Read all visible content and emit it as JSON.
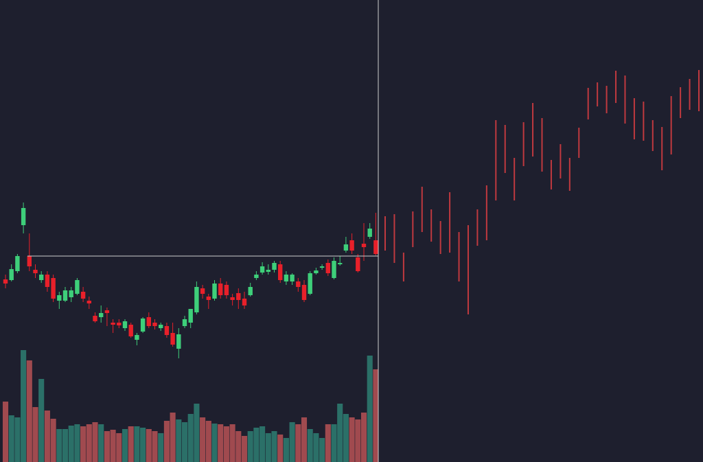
{
  "chart_data": {
    "type": "candlestick",
    "open": [
      266,
      265,
      278,
      345,
      300,
      280,
      265,
      273,
      268,
      235,
      235,
      240,
      245,
      248,
      235,
      213,
      211,
      221,
      203,
      203,
      195,
      200,
      178,
      190,
      211,
      203,
      195,
      198,
      188,
      165,
      198,
      203,
      218,
      253,
      241,
      238,
      260,
      258,
      240,
      246,
      238,
      243,
      268,
      276,
      277,
      280,
      288,
      263,
      263,
      263,
      258,
      245,
      275,
      283,
      290,
      268,
      288,
      308,
      323,
      298,
      318,
      328,
      323
    ],
    "close": [
      260,
      281,
      300,
      370,
      285,
      275,
      273,
      255,
      238,
      243,
      250,
      250,
      265,
      238,
      231,
      205,
      217,
      217,
      200,
      199,
      205,
      183,
      185,
      209,
      198,
      198,
      200,
      185,
      171,
      186,
      208,
      223,
      255,
      245,
      236,
      260,
      243,
      243,
      236,
      236,
      228,
      255,
      273,
      285,
      280,
      290,
      265,
      273,
      273,
      255,
      236,
      275,
      279,
      285,
      275,
      293,
      290,
      317,
      308,
      278,
      313,
      340,
      303
    ],
    "high": [
      273,
      288,
      303,
      378,
      333,
      288,
      278,
      278,
      273,
      248,
      255,
      255,
      268,
      255,
      241,
      218,
      228,
      225,
      208,
      208,
      208,
      203,
      188,
      211,
      218,
      208,
      203,
      203,
      203,
      195,
      213,
      223,
      263,
      258,
      245,
      265,
      268,
      263,
      245,
      253,
      248,
      261,
      278,
      291,
      288,
      293,
      293,
      278,
      275,
      268,
      265,
      278,
      283,
      288,
      295,
      298,
      300,
      328,
      333,
      303,
      348,
      348,
      363
    ],
    "low": [
      253,
      263,
      275,
      333,
      278,
      268,
      261,
      248,
      233,
      223,
      233,
      233,
      243,
      233,
      223,
      203,
      203,
      198,
      188,
      195,
      191,
      181,
      170,
      188,
      195,
      193,
      191,
      181,
      168,
      151,
      195,
      195,
      215,
      238,
      223,
      235,
      238,
      238,
      228,
      223,
      223,
      241,
      265,
      273,
      273,
      276,
      261,
      258,
      258,
      248,
      233,
      243,
      273,
      280,
      271,
      266,
      286,
      305,
      303,
      276,
      293,
      325,
      301
    ],
    "volume": [
      88,
      68,
      65,
      163,
      148,
      80,
      121,
      75,
      63,
      48,
      48,
      53,
      55,
      52,
      55,
      58,
      55,
      45,
      47,
      42,
      48,
      52,
      52,
      50,
      48,
      45,
      42,
      60,
      72,
      62,
      58,
      70,
      85,
      65,
      60,
      56,
      55,
      52,
      55,
      45,
      38,
      45,
      50,
      52,
      42,
      45,
      40,
      35,
      58,
      55,
      65,
      48,
      42,
      35,
      55,
      55,
      85,
      70,
      65,
      62,
      72,
      155,
      135
    ],
    "projection": {
      "high": [
        358,
        361,
        305,
        365,
        401,
        368,
        351,
        393,
        335,
        345,
        368,
        403,
        498,
        491,
        443,
        495,
        523,
        501,
        440,
        463,
        443,
        487,
        545,
        553,
        548,
        570,
        563,
        530,
        525,
        498,
        488,
        533,
        546,
        558,
        571
      ],
      "low": [
        308,
        290,
        263,
        313,
        335,
        321,
        303,
        305,
        263,
        215,
        315,
        323,
        381,
        421,
        381,
        431,
        445,
        423,
        397,
        413,
        395,
        443,
        499,
        518,
        508,
        523,
        493,
        470,
        468,
        453,
        425,
        448,
        501,
        513,
        511
      ],
      "color": "#c0393f"
    },
    "up_color": "#3ecf7a",
    "down_color": "#e8202a",
    "volume_up_color": "#2b7068",
    "volume_down_color": "#a04a4f",
    "ylim": [
      0,
      673
    ]
  }
}
